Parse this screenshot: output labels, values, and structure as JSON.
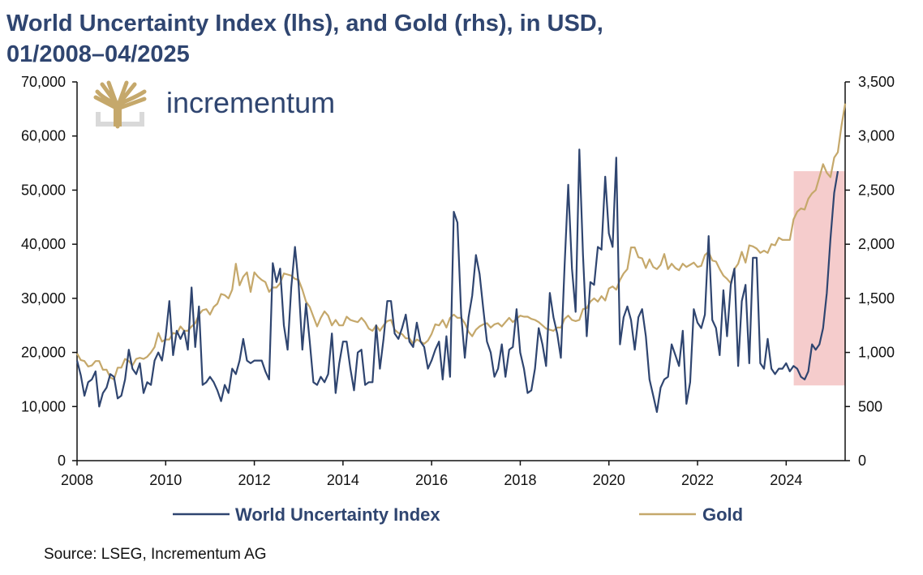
{
  "header": {
    "title_line1": "World Uncertainty Index (lhs), and Gold (rhs), in USD,",
    "title_line2": "01/2008–04/2025"
  },
  "logo": {
    "text": "incrementum",
    "icon": "tree-icon"
  },
  "source": "Source: LSEG, Incrementum AG",
  "colors": {
    "wui": "#2f4570",
    "gold": "#c5a86b",
    "highlight": "#f5cccc"
  },
  "chart_data": {
    "type": "line",
    "x_start": 2008.0,
    "x_step": 0.08333,
    "xlim": [
      2008,
      2025.33
    ],
    "x_ticks": [
      "2008",
      "2010",
      "2012",
      "2014",
      "2016",
      "2018",
      "2020",
      "2022",
      "2024"
    ],
    "y_left_lim": [
      0,
      70000
    ],
    "y_left_ticks": [
      "0",
      "10,000",
      "20,000",
      "30,000",
      "40,000",
      "50,000",
      "60,000",
      "70,000"
    ],
    "y_right_lim": [
      0,
      3500
    ],
    "y_right_ticks": [
      "0",
      "500",
      "1,000",
      "1,500",
      "2,000",
      "2,500",
      "3,000",
      "3,500"
    ],
    "highlight": {
      "x": [
        2024.17,
        2025.33
      ],
      "y_left": [
        13900,
        53500
      ]
    },
    "grid": false,
    "legend_position": "bottom",
    "series": [
      {
        "name": "World Uncertainty Index",
        "axis": "left",
        "values": [
          18500,
          15800,
          12000,
          14500,
          15000,
          16500,
          10000,
          12500,
          13500,
          16000,
          15500,
          11500,
          12000,
          15000,
          20500,
          17000,
          16000,
          18000,
          12500,
          14500,
          14000,
          18500,
          20000,
          18500,
          23000,
          29500,
          19500,
          24000,
          22500,
          24000,
          20500,
          32000,
          21000,
          28500,
          14000,
          14500,
          15500,
          14500,
          13000,
          11000,
          14000,
          12500,
          17000,
          16000,
          18500,
          22500,
          18500,
          18000,
          18500,
          18500,
          18500,
          16500,
          15000,
          36500,
          33000,
          35500,
          25000,
          20500,
          32000,
          39500,
          32500,
          20500,
          29000,
          22000,
          14500,
          14000,
          15500,
          14500,
          16000,
          23500,
          12500,
          18000,
          22000,
          22000,
          17000,
          13000,
          20000,
          20500,
          14000,
          14500,
          14500,
          25000,
          17000,
          22500,
          29500,
          29500,
          23500,
          22500,
          24500,
          27000,
          22000,
          21000,
          25500,
          22000,
          21000,
          17000,
          18500,
          20500,
          22000,
          15000,
          23000,
          15500,
          46000,
          44000,
          27000,
          19000,
          26500,
          30500,
          38000,
          34500,
          28000,
          22000,
          20000,
          15500,
          17000,
          21500,
          15500,
          20500,
          21000,
          28000,
          20000,
          17000,
          12500,
          13000,
          17000,
          24500,
          21500,
          17500,
          31000,
          26500,
          23500,
          19000,
          36000,
          51000,
          35500,
          27500,
          57500,
          38000,
          23000,
          33000,
          32500,
          39500,
          39000,
          52500,
          42000,
          39500,
          56000,
          21500,
          26500,
          28500,
          26000,
          20500,
          26500,
          28000,
          23000,
          15000,
          12000,
          9000,
          13500,
          15000,
          15500,
          21500,
          19500,
          17500,
          24000,
          10500,
          14500,
          28000,
          25500,
          24500,
          27000,
          41500,
          26000,
          24500,
          19500,
          31500,
          23000,
          32500,
          35500,
          17500,
          29500,
          32500,
          18000,
          37500,
          37500,
          18000,
          17000,
          22500,
          17000,
          16000,
          17000,
          17000,
          18000,
          16500,
          17500,
          17000,
          15500,
          15000,
          16500,
          21500,
          20500,
          21500,
          24500,
          31000,
          41000,
          49500,
          53500
        ]
      },
      {
        "name": "Gold",
        "axis": "right",
        "values": [
          990,
          930,
          920,
          870,
          880,
          920,
          920,
          840,
          840,
          770,
          750,
          860,
          860,
          940,
          920,
          880,
          940,
          950,
          940,
          960,
          1000,
          1050,
          1180,
          1100,
          1120,
          1120,
          1180,
          1170,
          1240,
          1200,
          1200,
          1240,
          1270,
          1350,
          1390,
          1400,
          1350,
          1420,
          1450,
          1540,
          1530,
          1500,
          1580,
          1820,
          1620,
          1700,
          1740,
          1560,
          1740,
          1700,
          1670,
          1650,
          1560,
          1600,
          1600,
          1640,
          1730,
          1720,
          1710,
          1680,
          1670,
          1580,
          1470,
          1420,
          1330,
          1240,
          1320,
          1380,
          1340,
          1250,
          1300,
          1250,
          1250,
          1330,
          1300,
          1290,
          1280,
          1320,
          1280,
          1220,
          1200,
          1250,
          1200,
          1250,
          1290,
          1300,
          1210,
          1180,
          1170,
          1130,
          1130,
          1080,
          1120,
          1100,
          1080,
          1110,
          1170,
          1260,
          1250,
          1300,
          1230,
          1320,
          1350,
          1320,
          1320,
          1270,
          1190,
          1150,
          1210,
          1240,
          1260,
          1270,
          1230,
          1260,
          1270,
          1240,
          1280,
          1320,
          1280,
          1310,
          1340,
          1330,
          1330,
          1310,
          1300,
          1280,
          1250,
          1220,
          1210,
          1200,
          1230,
          1230,
          1310,
          1340,
          1300,
          1290,
          1300,
          1400,
          1410,
          1470,
          1500,
          1470,
          1520,
          1480,
          1590,
          1610,
          1580,
          1670,
          1730,
          1770,
          1970,
          1970,
          1880,
          1870,
          1780,
          1860,
          1790,
          1770,
          1810,
          1910,
          1770,
          1820,
          1780,
          1760,
          1820,
          1790,
          1810,
          1830,
          1790,
          1800,
          1900,
          1930,
          1850,
          1840,
          1770,
          1710,
          1680,
          1640,
          1770,
          1820,
          1930,
          1830,
          1990,
          1980,
          1960,
          1920,
          1940,
          1920,
          2000,
          1990,
          2060,
          2040,
          2040,
          2040,
          2230,
          2300,
          2330,
          2320,
          2420,
          2470,
          2500,
          2620,
          2740,
          2660,
          2620,
          2800,
          2850,
          3100,
          3300
        ]
      }
    ]
  }
}
